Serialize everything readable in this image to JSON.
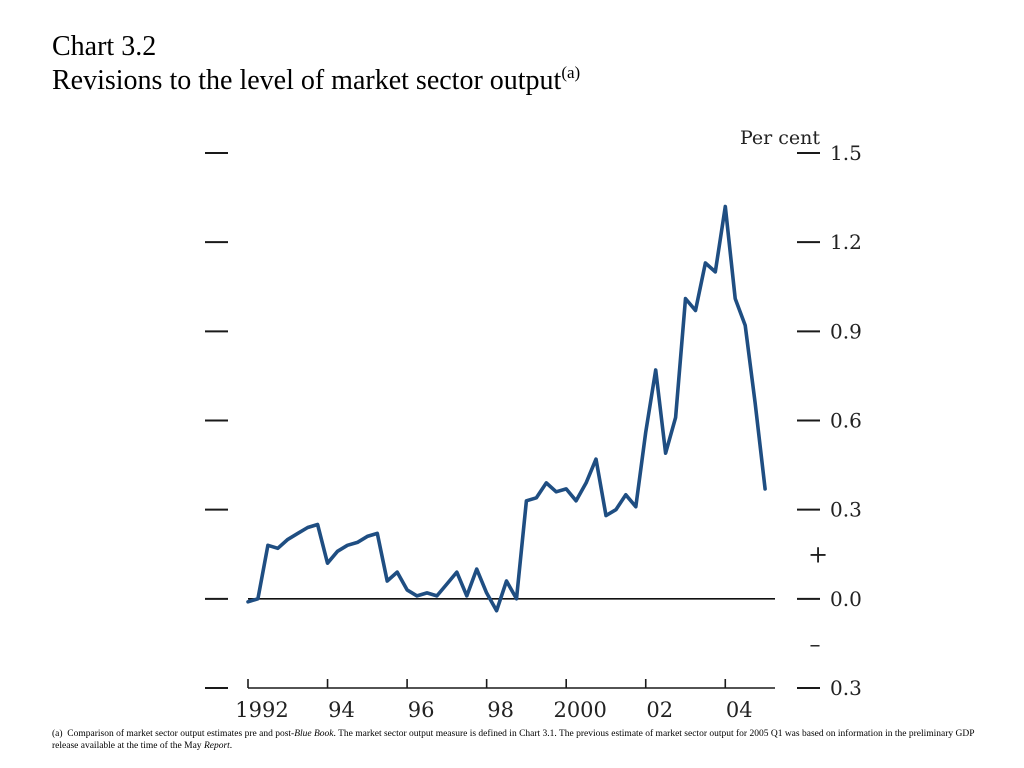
{
  "title": {
    "line1": "Chart 3.2",
    "line2": "Revisions to the level of market sector output",
    "sup": "(a)"
  },
  "footnote": {
    "marker": "(a)",
    "part1": "Comparison of market sector output estimates pre and post-",
    "italic1": "Blue Book",
    "part2": ".  The market sector output measure is defined in Chart 3.1.  The previous estimate of market sector output for 2005 Q1 was based on information in the preliminary GDP release available at the time of the May ",
    "italic2": "Report",
    "part3": "."
  },
  "chart_data": {
    "type": "line",
    "ylabel": "Per cent",
    "ylim": [
      -0.3,
      1.5
    ],
    "yticks": [
      -0.3,
      0.0,
      0.3,
      0.6,
      0.9,
      1.2,
      1.5
    ],
    "ytick_labels": [
      "0.3",
      "0.0",
      "0.3",
      "0.6",
      "0.9",
      "1.2",
      "1.5"
    ],
    "sign_markers": {
      "above_zero": "+",
      "below_zero": "–"
    },
    "xlim": [
      1992.0,
      2005.25
    ],
    "xticks": [
      1992,
      1994,
      1996,
      1998,
      2000,
      2002,
      2004
    ],
    "xtick_labels": [
      "1992",
      "94",
      "96",
      "98",
      "2000",
      "02",
      "04"
    ],
    "line_color": "#1f4e82",
    "grid": false,
    "x": [
      1992.0,
      1992.25,
      1992.5,
      1992.75,
      1993.0,
      1993.25,
      1993.5,
      1993.75,
      1994.0,
      1994.25,
      1994.5,
      1994.75,
      1995.0,
      1995.25,
      1995.5,
      1995.75,
      1996.0,
      1996.25,
      1996.5,
      1996.75,
      1997.0,
      1997.25,
      1997.5,
      1997.75,
      1998.0,
      1998.25,
      1998.5,
      1998.75,
      1999.0,
      1999.25,
      1999.5,
      1999.75,
      2000.0,
      2000.25,
      2000.5,
      2000.75,
      2001.0,
      2001.25,
      2001.5,
      2001.75,
      2002.0,
      2002.25,
      2002.5,
      2002.75,
      2003.0,
      2003.25,
      2003.5,
      2003.75,
      2004.0,
      2004.25,
      2004.5,
      2004.75,
      2005.0
    ],
    "y": [
      -0.01,
      0.0,
      0.18,
      0.17,
      0.2,
      0.22,
      0.24,
      0.25,
      0.12,
      0.16,
      0.18,
      0.19,
      0.21,
      0.22,
      0.06,
      0.09,
      0.03,
      0.01,
      0.02,
      0.01,
      0.05,
      0.09,
      0.01,
      0.1,
      0.02,
      -0.04,
      0.06,
      0.0,
      0.33,
      0.34,
      0.39,
      0.36,
      0.37,
      0.33,
      0.39,
      0.47,
      0.28,
      0.3,
      0.35,
      0.31,
      0.56,
      0.77,
      0.49,
      0.61,
      1.01,
      0.97,
      1.13,
      1.1,
      1.32,
      1.01,
      0.92,
      0.66,
      0.37
    ]
  }
}
